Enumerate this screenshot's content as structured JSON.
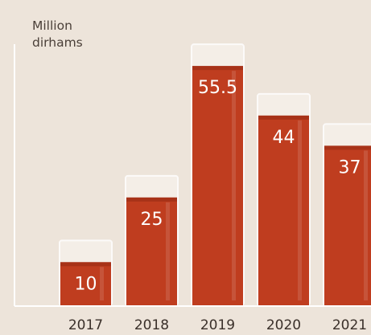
{
  "chart_data": {
    "type": "bar",
    "unit_label": [
      "Million",
      "dirhams"
    ],
    "categories": [
      "2017",
      "2018",
      "2019",
      "2020",
      "2021"
    ],
    "values": [
      10,
      25,
      55.5,
      44,
      37
    ],
    "value_labels": [
      "10",
      "25",
      "55.5",
      "44",
      "37"
    ],
    "ylim": [
      0,
      60
    ],
    "grid": false,
    "legend": "none"
  },
  "colors": {
    "background": "#ede4da",
    "bar_fill": "#bf3d1f",
    "bar_fill_dark": "#9c2d15",
    "glass_fill": "#f6f0ea",
    "glass_stroke": "#ffffff",
    "axis": "#ffffff",
    "value_text": "#ffffff",
    "category_text": "#3a302a"
  }
}
